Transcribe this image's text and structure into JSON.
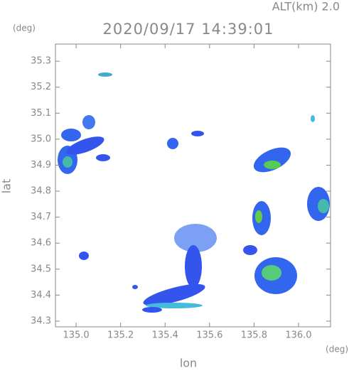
{
  "chart_data": {
    "type": "map",
    "title": "2020/09/17 14:39:01",
    "subtitle": "ALT(km) 2.0",
    "y_unit": "(deg)",
    "x_unit": "(deg)",
    "xlabel": "lon",
    "ylabel": "lat",
    "xlim": [
      134.907,
      136.144
    ],
    "ylim": [
      34.278,
      35.366
    ],
    "xticks": [
      {
        "value": 135.0,
        "label": "135.0"
      },
      135.2,
      135.4,
      135.6,
      135.8,
      {
        "value": 136.0,
        "label": "136.0"
      }
    ],
    "yticks": [
      34.3,
      34.4,
      34.5,
      34.6,
      34.7,
      34.8,
      34.9,
      {
        "value": 35.0,
        "label": "35.0"
      },
      35.1,
      35.2,
      35.3
    ]
  }
}
